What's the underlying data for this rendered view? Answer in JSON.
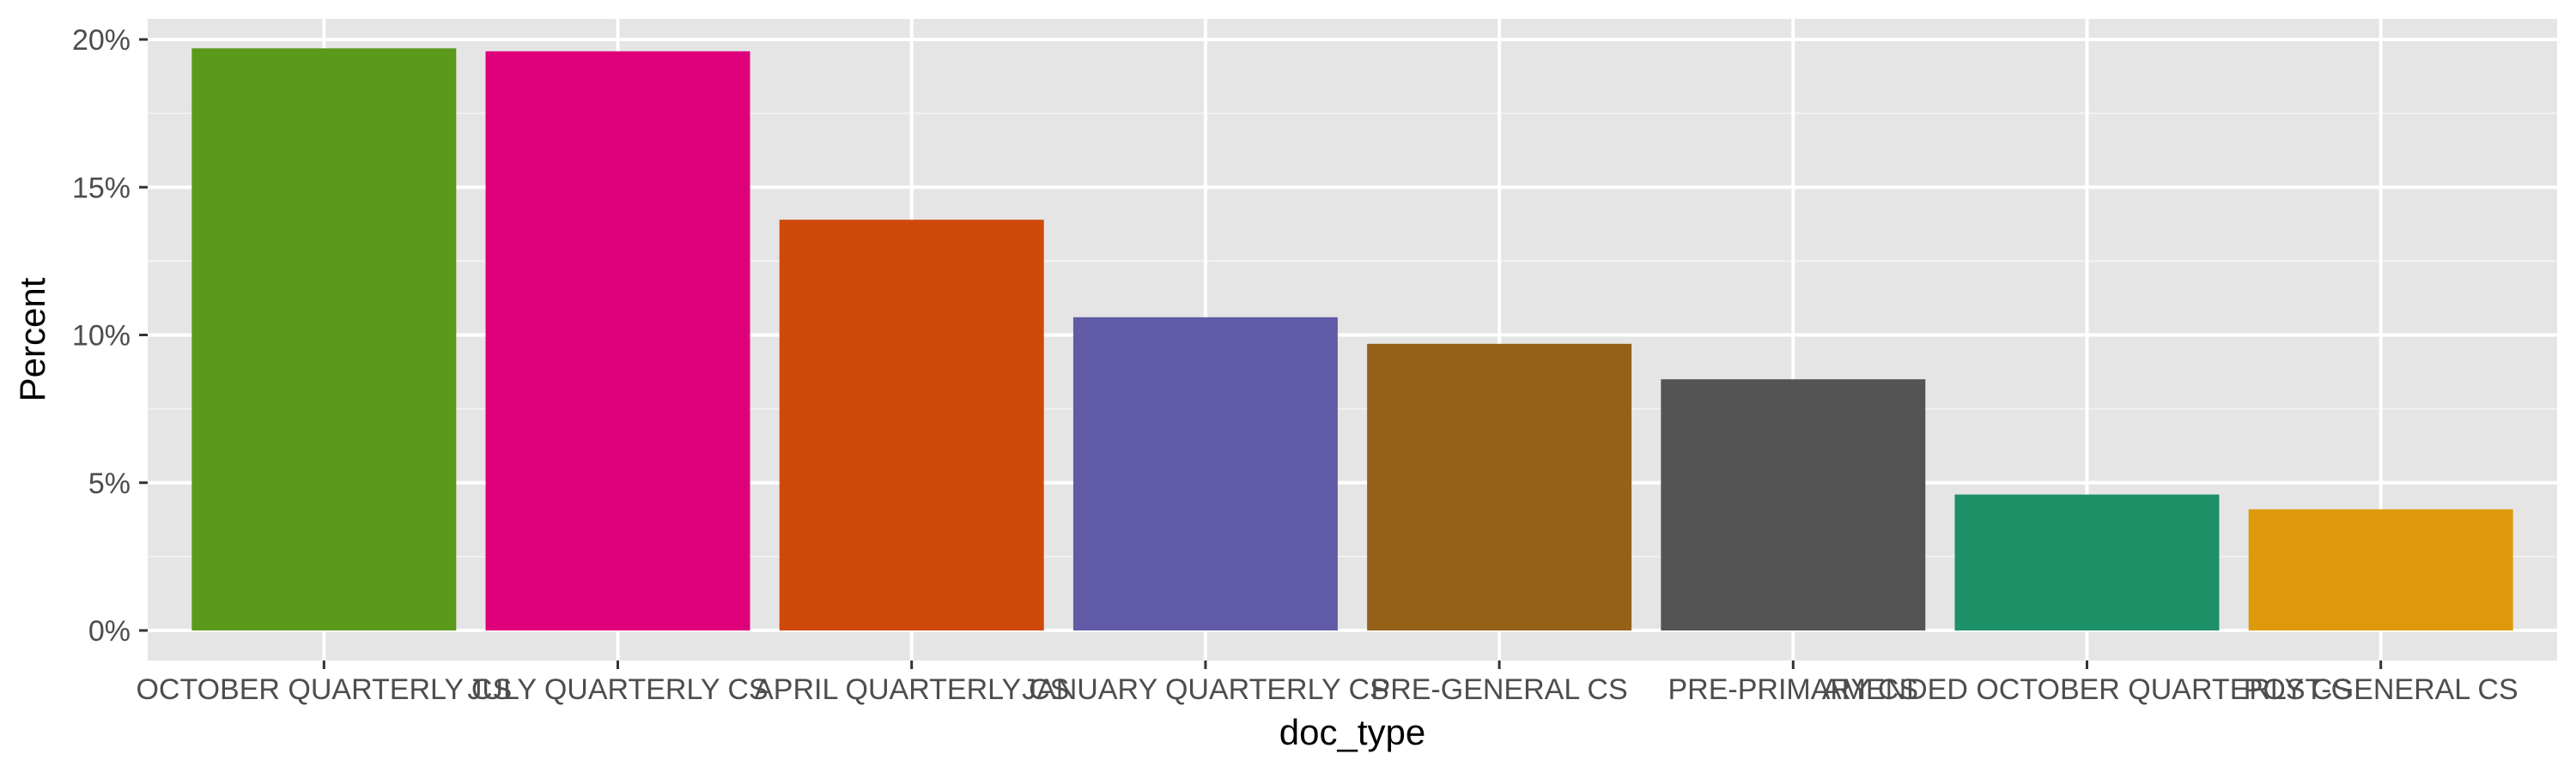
{
  "chart_data": {
    "type": "bar",
    "xlabel": "doc_type",
    "ylabel": "Percent",
    "categories": [
      "OCTOBER QUARTERLY CS",
      "JULY QUARTERLY CS",
      "APRIL QUARTERLY CS",
      "JANUARY QUARTERLY CS",
      "PRE-GENERAL CS",
      "PRE-PRIMARY CS",
      "AMENDED OCTOBER QUARTERLY CS",
      "POST-GENERAL CS"
    ],
    "values": [
      19.7,
      19.6,
      13.9,
      10.6,
      9.7,
      8.5,
      4.6,
      4.1
    ],
    "colors": [
      "#5a991a",
      "#de007a",
      "#cf4a0a",
      "#615aa6",
      "#956119",
      "#545454",
      "#1d9068",
      "#de990a"
    ],
    "ylim": [
      0,
      20.9
    ],
    "yticks": [
      0,
      5,
      10,
      15,
      20
    ],
    "ytick_labels": [
      "0%",
      "5%",
      "10%",
      "15%",
      "20%"
    ],
    "grid": true,
    "legend": "none"
  }
}
